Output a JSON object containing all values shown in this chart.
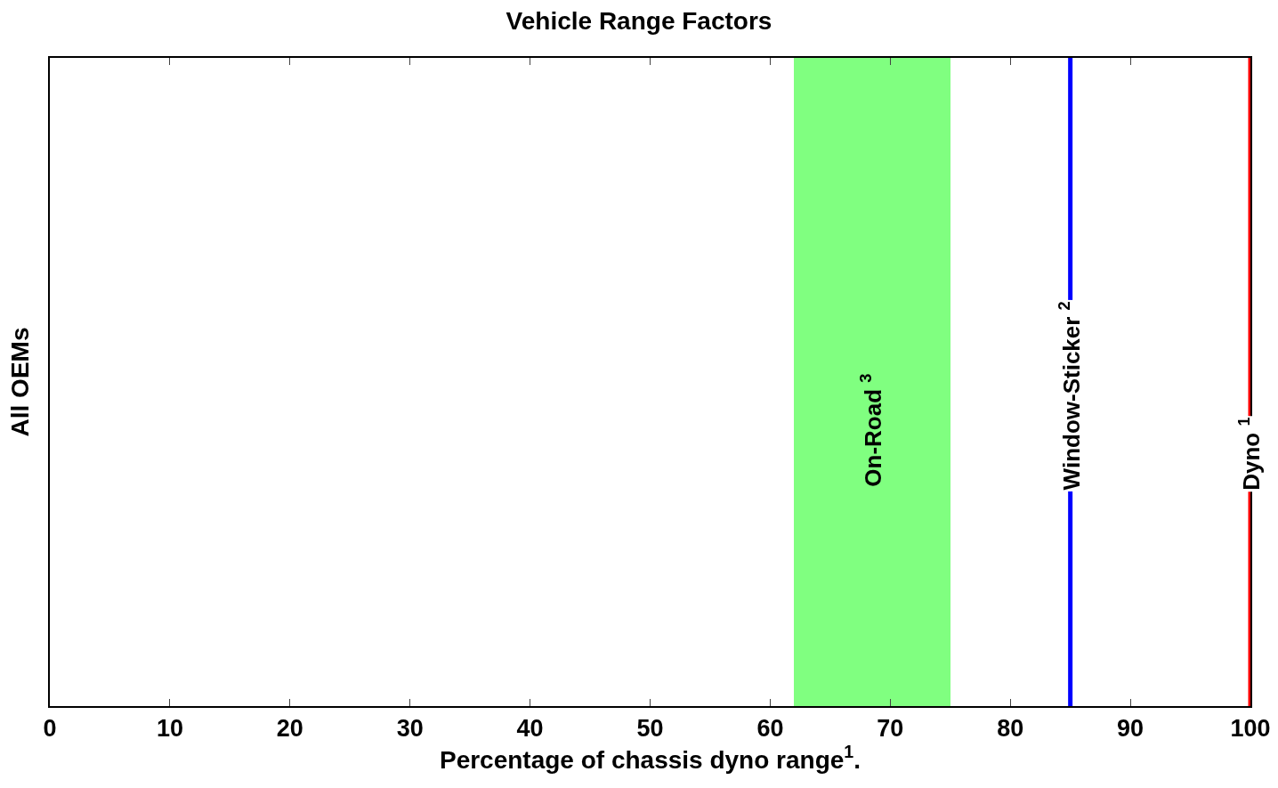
{
  "chart_data": {
    "type": "bar",
    "orientation": "horizontal",
    "title": "Vehicle Range Factors",
    "xlabel": "Percentage of chassis dyno range$^{1}$.",
    "ylabel": "All OEMs",
    "categories": [
      null
    ],
    "values": [
      13
    ],
    "base": [
      62
    ],
    "color": "#80ff80",
    "xlim": [
      0,
      100
    ],
    "xticks": [
      0,
      10,
      20,
      30,
      40,
      50,
      60,
      70,
      80,
      90,
      100
    ],
    "annotations": [
      "On-Road $^{3}$"
    ],
    "ref_lines": [
      {
        "axis": "x",
        "value": 85,
        "label": "Window-Sticker $^{2}$",
        "color": "#0000ff",
        "line_style": "solid"
      },
      {
        "axis": "x",
        "value": 100,
        "label": "Dyno $^{1}$",
        "color": "#ff0000",
        "line_style": "solid"
      }
    ]
  }
}
